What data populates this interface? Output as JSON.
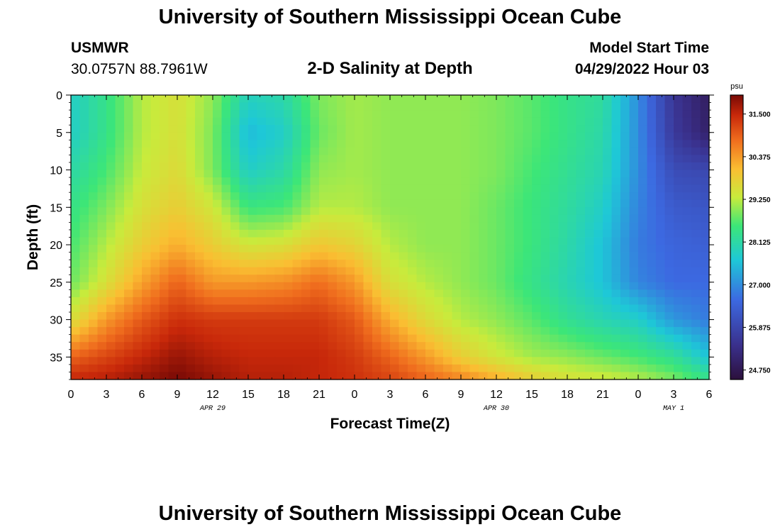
{
  "header": {
    "title": "University of Southern Mississippi Ocean Cube",
    "station": "USMWR",
    "coords": "30.0757N  88.7961W",
    "subtitle": "2-D Salinity at Depth",
    "start_label": "Model Start Time",
    "start_value": "04/29/2022 Hour 03"
  },
  "footer": {
    "title": "University of Southern Mississippi Ocean Cube"
  },
  "chart_data": {
    "type": "heatmap",
    "title": "2-D Salinity at Depth",
    "xlabel": "Forecast Time(Z)",
    "ylabel": "Depth (ft)",
    "xlim": [
      0,
      54
    ],
    "ylim": [
      38,
      0
    ],
    "x_unit": "hours since 04/29 00Z",
    "x_ticks": [
      0,
      3,
      6,
      9,
      12,
      15,
      18,
      21,
      24,
      27,
      30,
      33,
      36,
      39,
      42,
      45,
      48,
      51,
      54
    ],
    "x_tick_labels": [
      "0",
      "3",
      "6",
      "9",
      "12",
      "15",
      "18",
      "21",
      "0",
      "3",
      "6",
      "9",
      "12",
      "15",
      "18",
      "21",
      "0",
      "3",
      "6"
    ],
    "date_labels": [
      {
        "x": 12,
        "label": "APR 29"
      },
      {
        "x": 36,
        "label": "APR 30"
      },
      {
        "x": 51,
        "label": "MAY 1"
      }
    ],
    "y_ticks": [
      0,
      5,
      10,
      15,
      20,
      25,
      30,
      35
    ],
    "y_tick_labels": [
      "0",
      "5",
      "10",
      "15",
      "20",
      "25",
      "30",
      "35"
    ],
    "colorbar": {
      "unit": "psu",
      "min": 24.5,
      "max": 32.0,
      "ticks": [
        31.5,
        30.375,
        29.25,
        28.125,
        27.0,
        25.875,
        24.75
      ],
      "tick_labels": [
        "31.500",
        "30.375",
        "29.250",
        "28.125",
        "27.000",
        "25.875",
        "24.750"
      ]
    },
    "depths": [
      0,
      5,
      10,
      15,
      20,
      25,
      30,
      35,
      38
    ],
    "times": [
      0,
      3,
      6,
      9,
      12,
      15,
      18,
      21,
      24,
      27,
      30,
      33,
      36,
      39,
      42,
      45,
      48,
      51,
      54
    ],
    "values": [
      [
        27.8,
        28.4,
        29.2,
        29.5,
        29.0,
        27.9,
        28.1,
        28.9,
        29.1,
        29.0,
        29.0,
        29.0,
        28.9,
        28.7,
        28.4,
        28.2,
        27.0,
        25.5,
        24.9
      ],
      [
        27.8,
        28.4,
        29.2,
        29.5,
        28.9,
        27.5,
        27.8,
        28.8,
        29.1,
        29.0,
        29.0,
        29.0,
        28.9,
        28.7,
        28.4,
        28.1,
        27.0,
        25.6,
        25.0
      ],
      [
        28.1,
        28.6,
        29.3,
        29.6,
        28.9,
        27.8,
        28.1,
        29.0,
        29.1,
        29.0,
        29.0,
        29.0,
        28.9,
        28.6,
        28.3,
        28.0,
        27.0,
        26.0,
        25.9
      ],
      [
        28.4,
        28.9,
        29.5,
        29.8,
        29.4,
        28.5,
        28.6,
        29.2,
        29.2,
        29.0,
        29.0,
        29.0,
        28.8,
        28.5,
        28.2,
        27.8,
        26.9,
        26.3,
        26.2
      ],
      [
        28.6,
        29.2,
        29.8,
        30.2,
        29.8,
        29.4,
        29.5,
        29.9,
        29.7,
        29.2,
        29.0,
        29.0,
        28.8,
        28.5,
        28.1,
        27.6,
        26.8,
        26.5,
        26.4
      ],
      [
        28.8,
        29.5,
        30.3,
        30.9,
        30.4,
        30.4,
        30.5,
        30.8,
        30.4,
        29.5,
        29.2,
        29.0,
        28.8,
        28.4,
        28.0,
        27.6,
        26.9,
        26.6,
        26.6
      ],
      [
        29.5,
        30.4,
        31.0,
        31.4,
        31.3,
        31.3,
        31.3,
        31.3,
        31.0,
        30.2,
        29.6,
        29.2,
        29.0,
        28.7,
        28.3,
        28.0,
        27.8,
        27.1,
        26.8
      ],
      [
        30.9,
        31.2,
        31.5,
        31.8,
        31.6,
        31.5,
        31.5,
        31.5,
        31.3,
        30.9,
        30.4,
        29.8,
        29.4,
        29.1,
        29.0,
        28.8,
        28.6,
        28.3,
        27.6
      ],
      [
        31.5,
        31.6,
        31.8,
        32.0,
        31.8,
        31.6,
        31.6,
        31.5,
        31.4,
        31.2,
        30.9,
        30.6,
        30.2,
        29.8,
        29.5,
        29.4,
        29.2,
        28.9,
        28.4
      ]
    ]
  }
}
